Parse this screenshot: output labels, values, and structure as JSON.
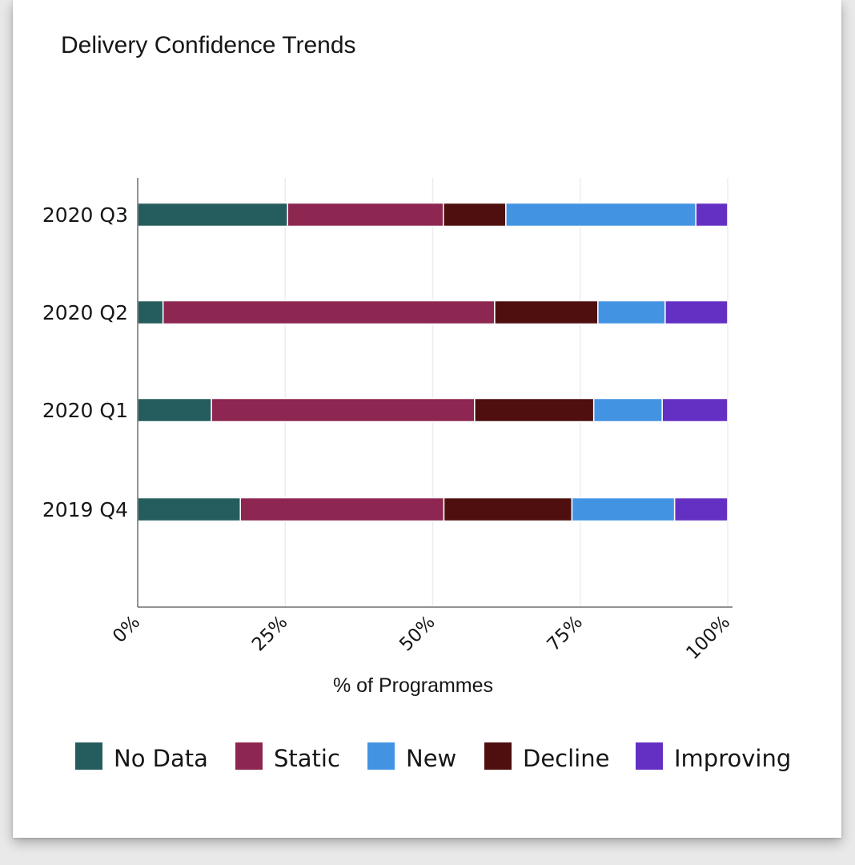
{
  "chart_data": {
    "type": "bar",
    "orientation": "horizontal",
    "stacked": true,
    "title": "Delivery Confidence Trends",
    "xlabel": "% of Programmes",
    "ylabel": "",
    "xlim": [
      0,
      100
    ],
    "x_ticks": [
      0,
      25,
      50,
      75,
      100
    ],
    "x_tick_labels": [
      "0%",
      "25%",
      "50%",
      "75%",
      "100%"
    ],
    "grid": true,
    "legend_placement": "bottom",
    "categories": [
      "2020 Q3",
      "2020 Q2",
      "2020 Q1",
      "2019 Q4"
    ],
    "series": [
      {
        "name": "No Data",
        "color": "#255d5e",
        "values": [
          25.4,
          4.3,
          12.5,
          17.4
        ]
      },
      {
        "name": "Static",
        "color": "#8d2650",
        "values": [
          26.4,
          56.2,
          44.6,
          34.5
        ]
      },
      {
        "name": "Decline",
        "color": "#4f0f0f",
        "values": [
          10.6,
          17.5,
          20.2,
          21.7
        ]
      },
      {
        "name": "New",
        "color": "#4294e2",
        "values": [
          32.2,
          11.4,
          11.6,
          17.4
        ]
      },
      {
        "name": "Improving",
        "color": "#6430c4",
        "values": [
          5.4,
          10.6,
          11.1,
          9.0
        ]
      }
    ],
    "legend_order": [
      "No Data",
      "Static",
      "New",
      "Decline",
      "Improving"
    ]
  }
}
